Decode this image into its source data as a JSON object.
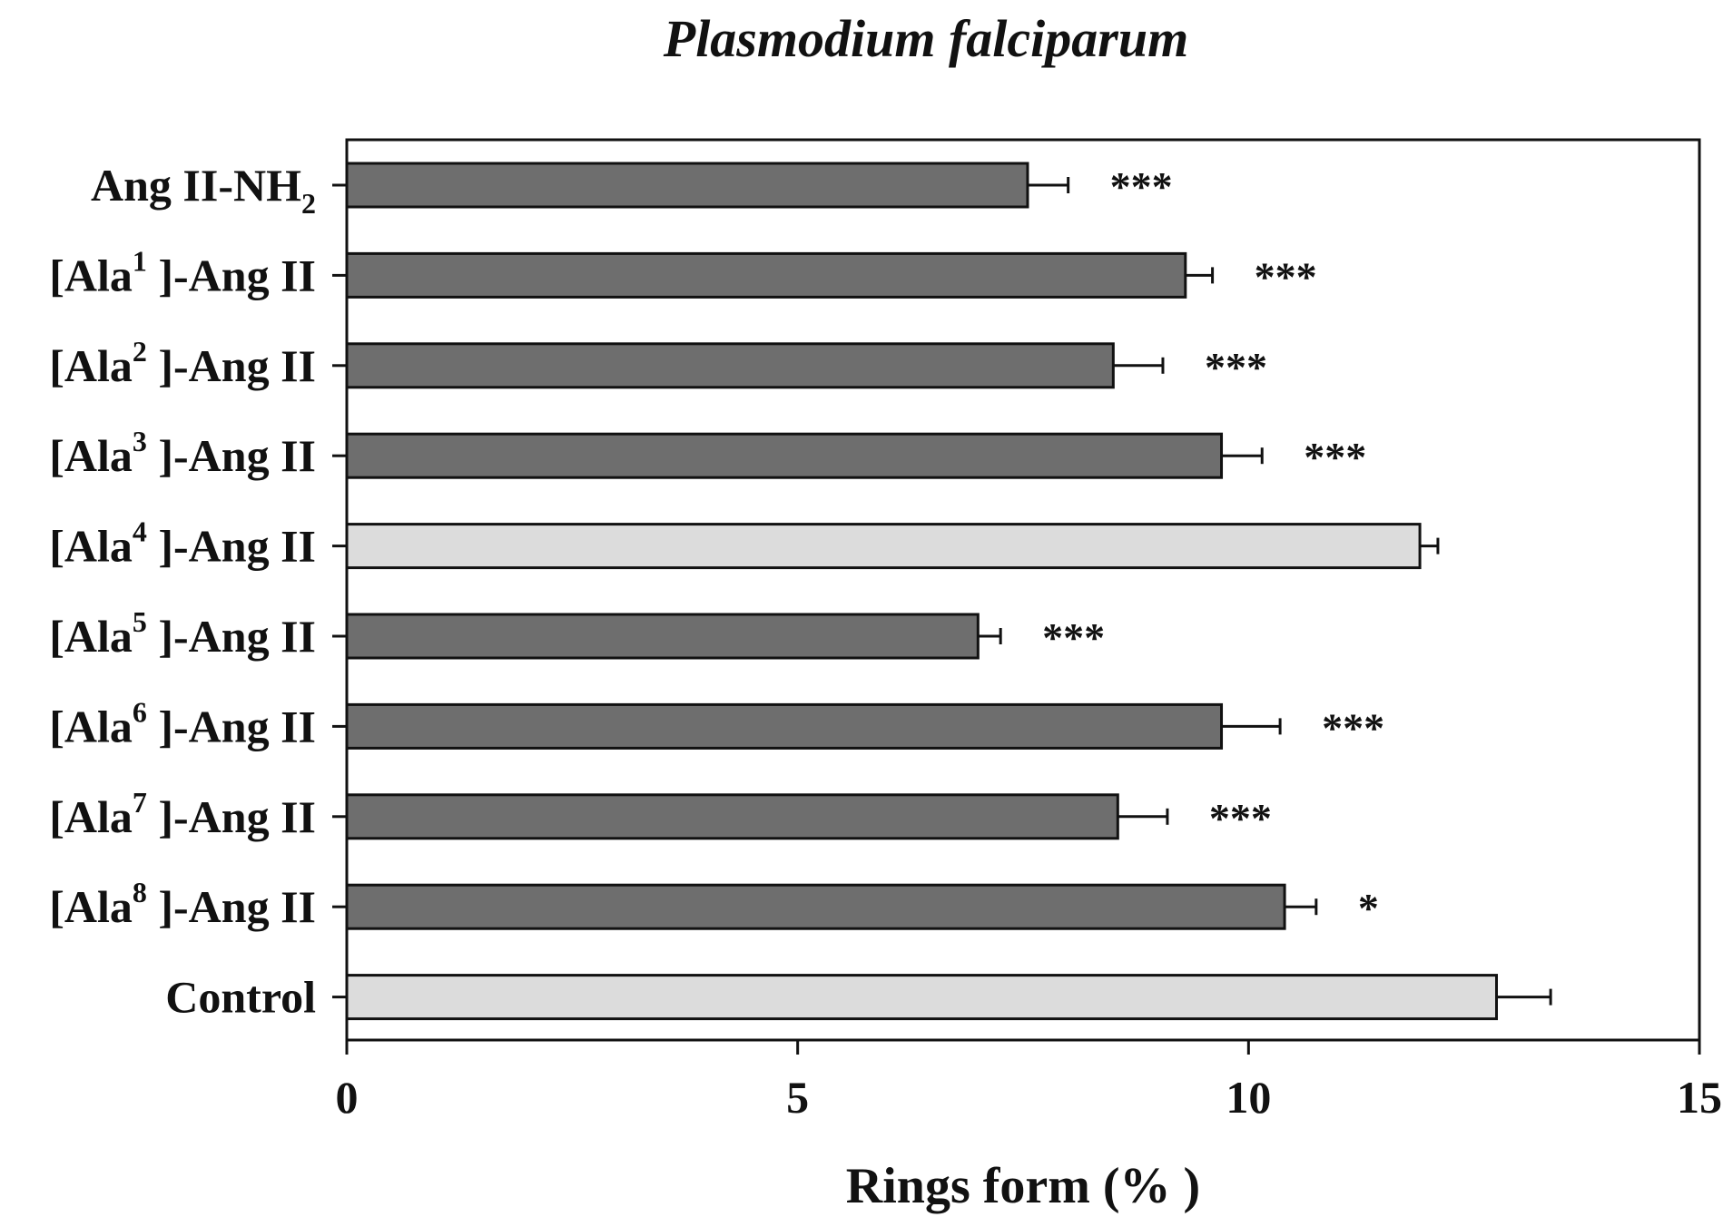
{
  "chart_data": {
    "type": "bar",
    "orientation": "horizontal",
    "title": "Plasmodium falciparum",
    "xlabel": "Rings form (% )",
    "ylabel": "",
    "xlim": [
      0,
      15
    ],
    "xticks": [
      "0",
      "5",
      "10",
      "15"
    ],
    "grid": false,
    "categories": [
      {
        "main": "Ang II-NH",
        "sub": "2",
        "sub_pos": "subscript",
        "suffix": ""
      },
      {
        "main": "[Ala",
        "sub": "1",
        "sub_pos": "superscript",
        "suffix": " ]-Ang II"
      },
      {
        "main": "[Ala",
        "sub": "2",
        "sub_pos": "superscript",
        "suffix": " ]-Ang II"
      },
      {
        "main": "[Ala",
        "sub": "3",
        "sub_pos": "superscript",
        "suffix": " ]-Ang II"
      },
      {
        "main": "[Ala",
        "sub": "4",
        "sub_pos": "superscript",
        "suffix": " ]-Ang II"
      },
      {
        "main": "[Ala",
        "sub": "5",
        "sub_pos": "superscript",
        "suffix": " ]-Ang II"
      },
      {
        "main": "[Ala",
        "sub": "6",
        "sub_pos": "superscript",
        "suffix": " ]-Ang II"
      },
      {
        "main": "[Ala",
        "sub": "7",
        "sub_pos": "superscript",
        "suffix": " ]-Ang II"
      },
      {
        "main": "[Ala",
        "sub": "8",
        "sub_pos": "superscript",
        "suffix": " ]-Ang II"
      },
      {
        "main": "Control",
        "sub": "",
        "sub_pos": "",
        "suffix": ""
      }
    ],
    "values": [
      7.55,
      9.3,
      8.5,
      9.7,
      11.9,
      7.0,
      9.7,
      8.55,
      10.4,
      12.75
    ],
    "errors": [
      0.45,
      0.3,
      0.55,
      0.45,
      0.2,
      0.25,
      0.65,
      0.55,
      0.35,
      0.6
    ],
    "significance": [
      "***",
      "***",
      "***",
      "***",
      "",
      "***",
      "***",
      "***",
      "*",
      ""
    ],
    "bar_colors": [
      "#6e6e6e",
      "#6e6e6e",
      "#6e6e6e",
      "#6e6e6e",
      "#dcdcdc",
      "#6e6e6e",
      "#6e6e6e",
      "#6e6e6e",
      "#6e6e6e",
      "#dcdcdc"
    ]
  }
}
